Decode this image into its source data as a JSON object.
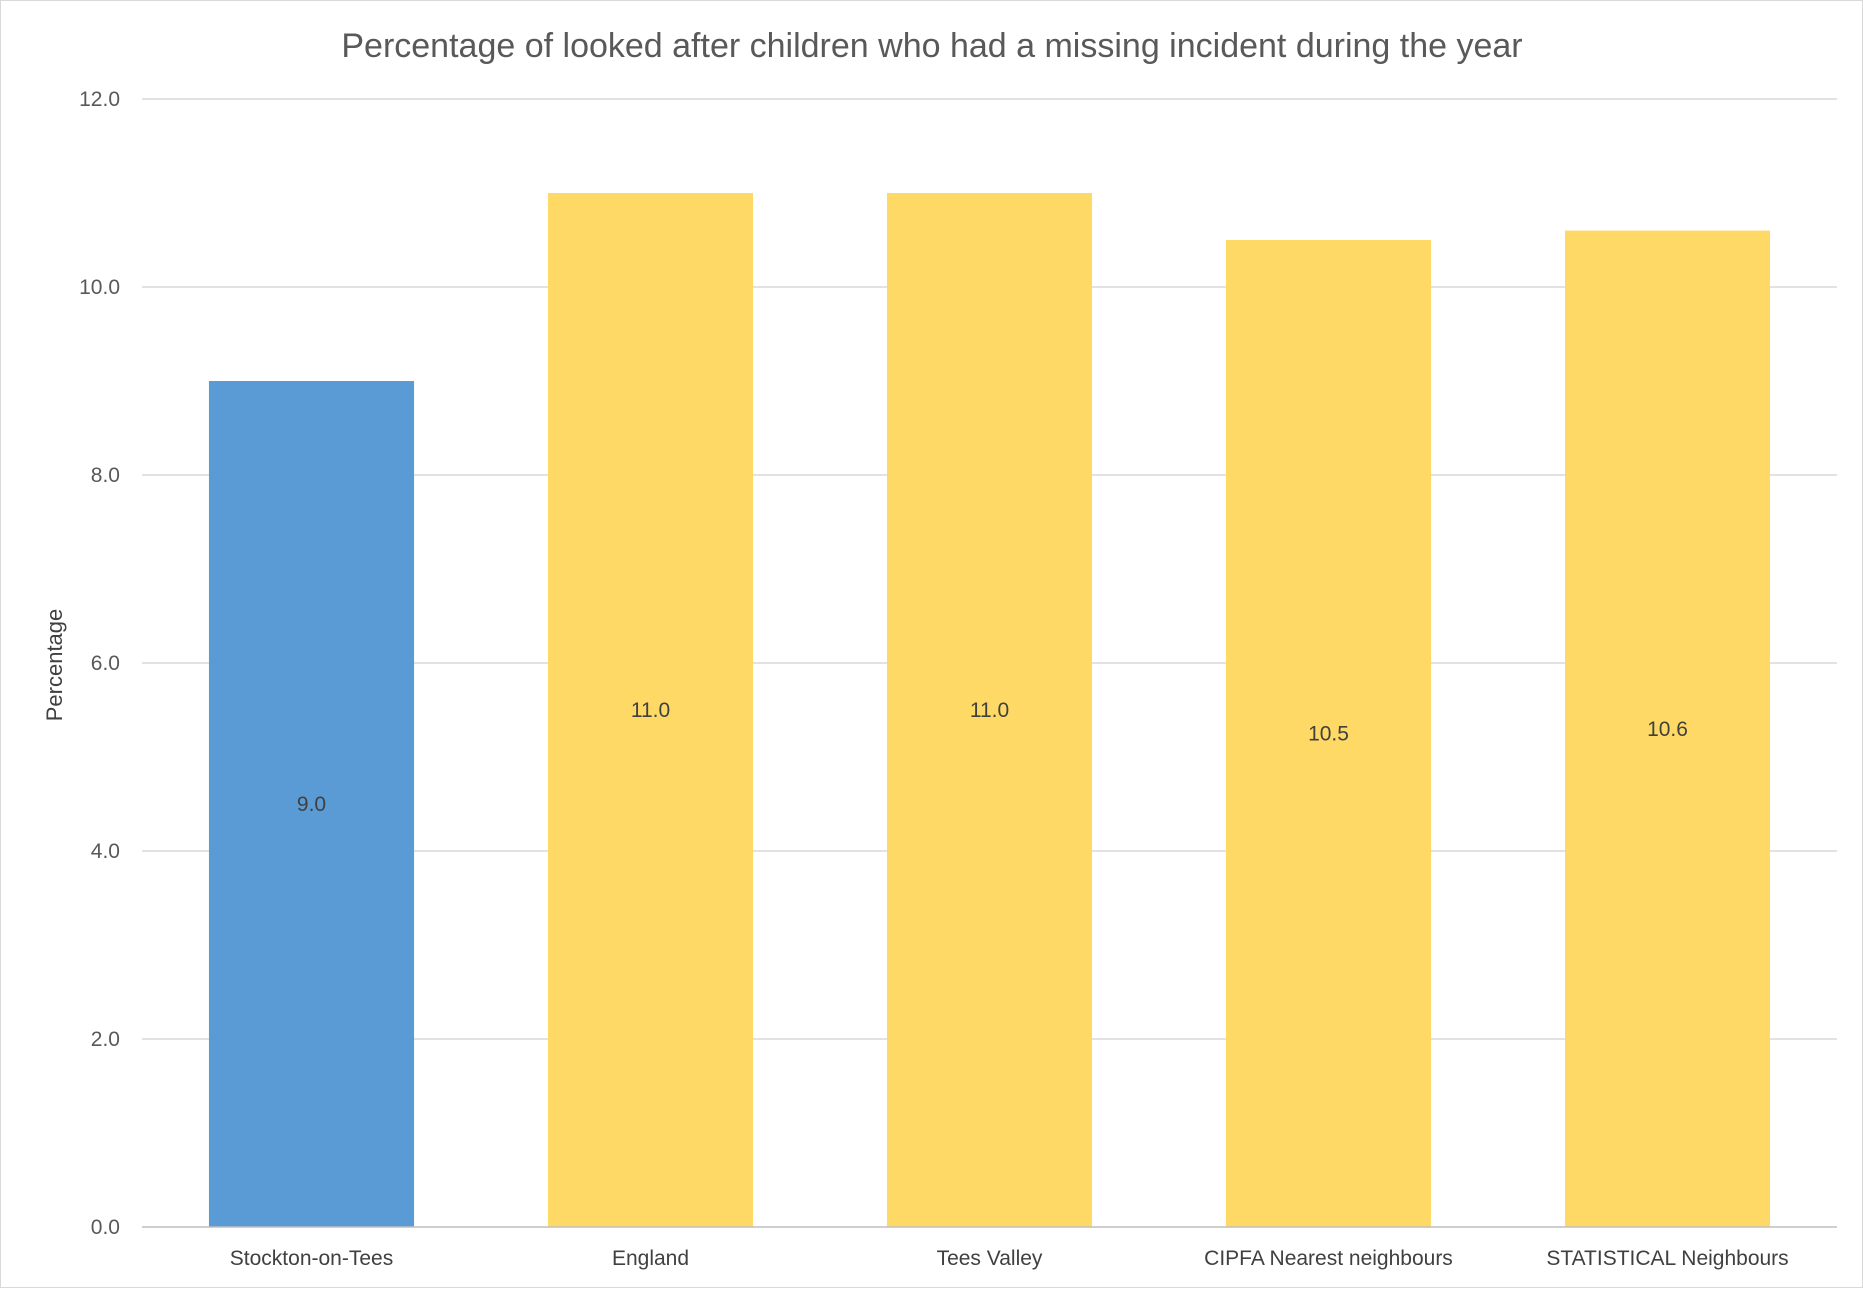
{
  "chart_data": {
    "type": "bar",
    "title": "Percentage of looked after children who had a missing incident during the year",
    "xlabel": "",
    "ylabel": "Percentage",
    "categories": [
      "Stockton-on-Tees",
      "England",
      "Tees Valley",
      "CIPFA Nearest neighbours",
      "STATISTICAL Neighbours"
    ],
    "values": [
      9.0,
      11.0,
      11.0,
      10.5,
      10.6
    ],
    "data_labels": [
      "9.0",
      "11.0",
      "11.0",
      "10.5",
      "10.6"
    ],
    "bar_colors": [
      "#5b9bd5",
      "#ffd966",
      "#ffd966",
      "#ffd966",
      "#ffd966"
    ],
    "ylim": [
      0,
      12
    ],
    "yticks": [
      0,
      2,
      4,
      6,
      8,
      10,
      12
    ],
    "ytick_labels": [
      "0.0",
      "2.0",
      "4.0",
      "6.0",
      "8.0",
      "10.0",
      "12.0"
    ],
    "grid": true,
    "legend": "none"
  }
}
